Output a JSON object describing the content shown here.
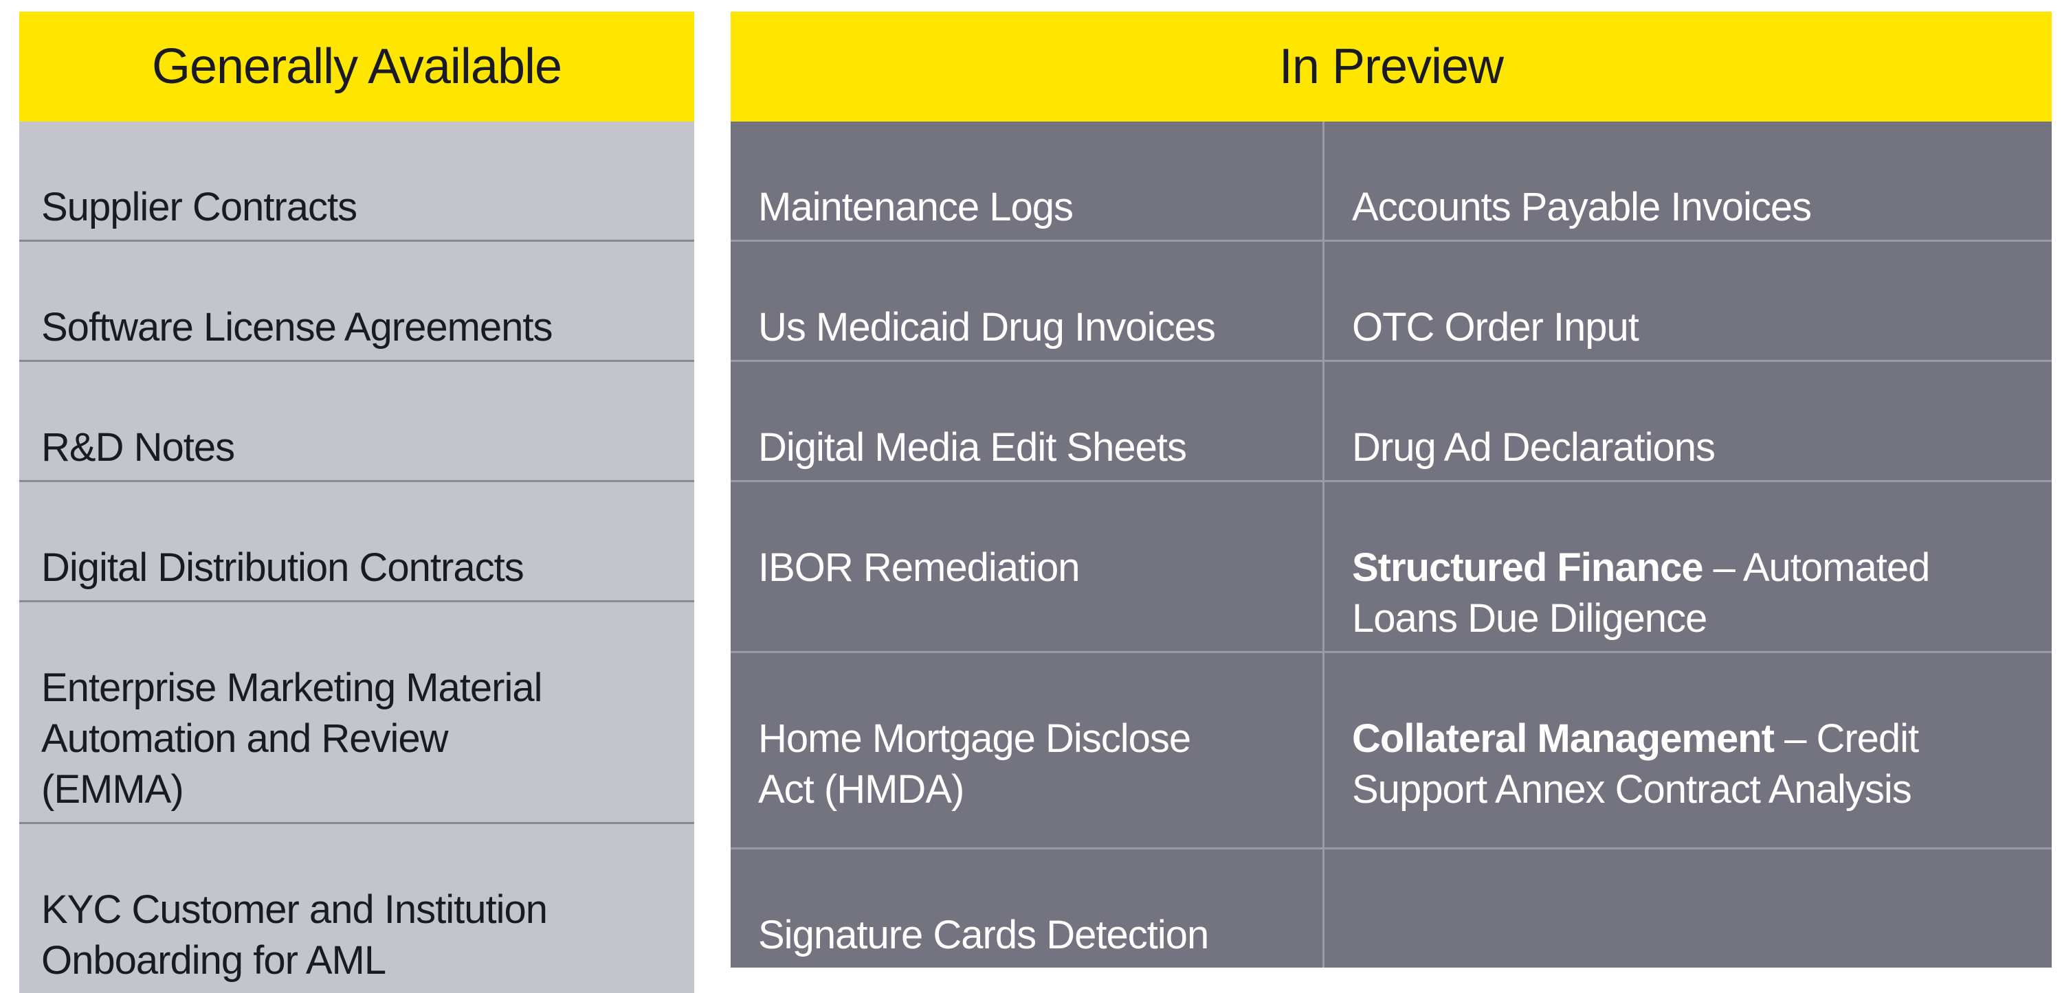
{
  "palette": {
    "header_bg": "#FFE600",
    "header_text": "#1A1A24",
    "ga_row_bg": "#C4C4CD",
    "ga_text": "#1A1A24",
    "ga_divider": "#898993",
    "pv_row_bg": "#747480",
    "pv_text": "#FFFFFF",
    "pv_divider": "#9B9BA4"
  },
  "ga_table": {
    "title": "Generally Available",
    "items": [
      "Supplier Contracts",
      "Software License Agreements",
      "R&D Notes",
      "Digital Distribution Contracts",
      "Enterprise Marketing Material\nAutomation and Review\n(EMMA)",
      "KYC Customer and Institution\nOnboarding for AML"
    ]
  },
  "preview_table": {
    "title": "In Preview",
    "rows": [
      {
        "left": "Maintenance Logs",
        "right_bold": "",
        "right": "Accounts Payable Invoices"
      },
      {
        "left": "Us Medicaid Drug Invoices",
        "right_bold": "",
        "right": "OTC Order Input"
      },
      {
        "left": "Digital Media Edit Sheets",
        "right_bold": "",
        "right": "Drug Ad Declarations"
      },
      {
        "left": "IBOR Remediation",
        "right_bold": "Structured Finance",
        "right": " – Automated\nLoans Due Diligence"
      },
      {
        "left": "Home Mortgage Disclose\nAct (HMDA)",
        "right_bold": "Collateral Management",
        "right": " – Credit\nSupport Annex Contract Analysis"
      },
      {
        "left": "Signature Cards Detection",
        "right_bold": "",
        "right": ""
      }
    ]
  }
}
